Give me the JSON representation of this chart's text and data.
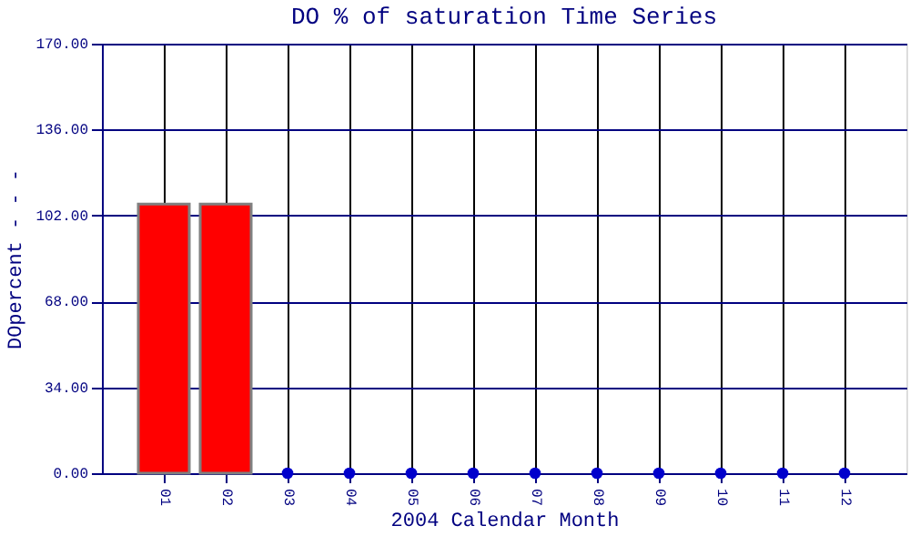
{
  "chart_data": {
    "type": "bar",
    "title": "DO % of saturation Time Series",
    "xlabel": "2004 Calendar Month",
    "ylabel": "DOpercent - - -",
    "categories": [
      "01",
      "02",
      "03",
      "04",
      "05",
      "06",
      "07",
      "08",
      "09",
      "10",
      "11",
      "12"
    ],
    "series": [
      {
        "color": "#ff0000",
        "values": [
          106.5,
          106.5,
          null,
          null,
          null,
          null,
          null,
          null,
          null,
          null,
          null,
          null
        ]
      },
      {
        "type": "scatter",
        "color": "#0000cc",
        "values": [
          null,
          null,
          0,
          0,
          0,
          0,
          0,
          0,
          0,
          0,
          0,
          0
        ]
      }
    ],
    "ylim": [
      0,
      170
    ],
    "yticks": [
      {
        "value": 0,
        "label": "0.00"
      },
      {
        "value": 34,
        "label": "34.00"
      },
      {
        "value": 68,
        "label": "68.00"
      },
      {
        "value": 102,
        "label": "102.00"
      },
      {
        "value": 136,
        "label": "136.00"
      },
      {
        "value": 170,
        "label": "170.00"
      }
    ],
    "grid": true,
    "marker": "circle"
  }
}
